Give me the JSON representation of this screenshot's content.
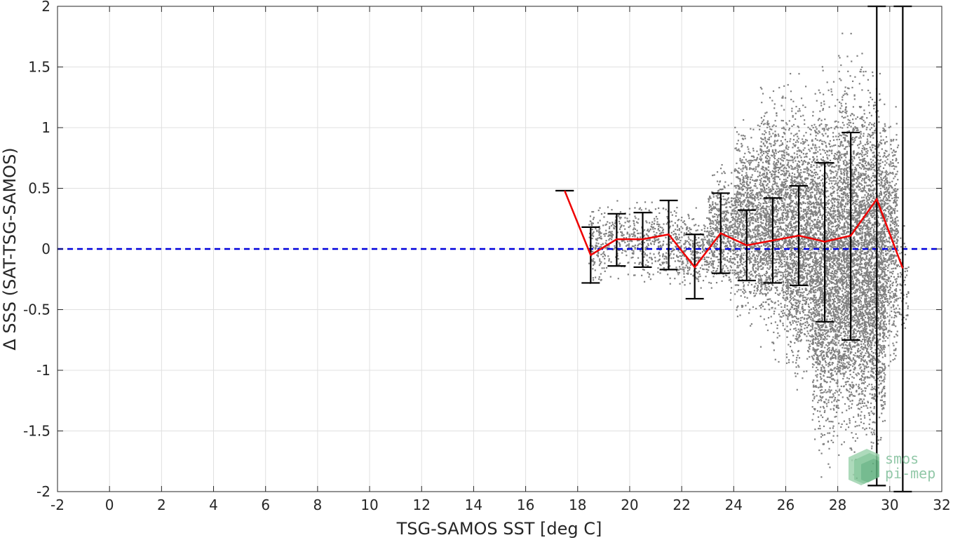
{
  "chart_data": {
    "type": "scatter",
    "xlabel": "TSG-SAMOS SST [deg C]",
    "ylabel": "Δ SSS (SAT-TSG-SAMOS)",
    "xlim": [
      -2,
      32
    ],
    "ylim": [
      -2,
      2
    ],
    "xticks": [
      -2,
      0,
      2,
      4,
      6,
      8,
      10,
      12,
      14,
      16,
      18,
      20,
      22,
      24,
      26,
      28,
      30,
      32
    ],
    "yticks": [
      -2,
      -1.5,
      -1,
      -0.5,
      0,
      0.5,
      1,
      1.5,
      2
    ],
    "xtick_labels": [
      "-2",
      "0",
      "2",
      "4",
      "6",
      "8",
      "10",
      "12",
      "14",
      "16",
      "18",
      "20",
      "22",
      "24",
      "26",
      "28",
      "30",
      "32"
    ],
    "ytick_labels": [
      "-2",
      "-1.5",
      "-1",
      "-0.5",
      "0",
      "0.5",
      "1",
      "1.5",
      "2"
    ],
    "grid": true,
    "reference_line": {
      "y": 0,
      "style": "dashed",
      "color": "#0000dd"
    },
    "series": [
      {
        "kind": "binned-mean-line",
        "color": "#ee0000",
        "x": [
          17.5,
          18.5,
          19.5,
          20.5,
          21.5,
          22.5,
          23.5,
          24.5,
          25.5,
          26.5,
          27.5,
          28.5,
          29.5,
          30.5
        ],
        "y": [
          0.48,
          -0.05,
          0.08,
          0.08,
          0.12,
          -0.15,
          0.13,
          0.03,
          0.07,
          0.11,
          0.06,
          0.11,
          0.41,
          -0.16
        ]
      },
      {
        "kind": "error-bars",
        "color": "#000000",
        "x": [
          17.5,
          18.5,
          19.5,
          20.5,
          21.5,
          22.5,
          23.5,
          24.5,
          25.5,
          26.5,
          27.5,
          28.5,
          29.5,
          30.5
        ],
        "low": [
          0.48,
          -0.28,
          -0.14,
          -0.15,
          -0.17,
          -0.41,
          -0.2,
          -0.26,
          -0.28,
          -0.3,
          -0.6,
          -0.75,
          -1.95,
          -2.0
        ],
        "high": [
          0.48,
          0.18,
          0.29,
          0.3,
          0.4,
          0.12,
          0.46,
          0.32,
          0.42,
          0.52,
          0.71,
          0.96,
          2.0,
          2.0
        ]
      },
      {
        "kind": "scatter-cloud",
        "color": "#808080",
        "bins": [
          {
            "x": [
              18.4,
              19.0
            ],
            "y": [
              -0.38,
              0.45
            ],
            "n": 120
          },
          {
            "x": [
              19.0,
              20.0
            ],
            "y": [
              -0.3,
              0.48
            ],
            "n": 160
          },
          {
            "x": [
              20.0,
              21.0
            ],
            "y": [
              -0.32,
              0.48
            ],
            "n": 180
          },
          {
            "x": [
              21.0,
              22.0
            ],
            "y": [
              -0.4,
              0.45
            ],
            "n": 200
          },
          {
            "x": [
              22.0,
              23.0
            ],
            "y": [
              -0.45,
              0.4
            ],
            "n": 240
          },
          {
            "x": [
              23.0,
              24.0
            ],
            "y": [
              -0.5,
              0.8
            ],
            "n": 500
          },
          {
            "x": [
              24.0,
              25.0
            ],
            "y": [
              -0.75,
              1.2
            ],
            "n": 900
          },
          {
            "x": [
              25.0,
              26.0
            ],
            "y": [
              -1.0,
              1.5
            ],
            "n": 1200
          },
          {
            "x": [
              26.0,
              27.0
            ],
            "y": [
              -1.3,
              1.5
            ],
            "n": 1500
          },
          {
            "x": [
              27.0,
              28.0
            ],
            "y": [
              -2.0,
              1.7
            ],
            "n": 2000
          },
          {
            "x": [
              28.0,
              29.0
            ],
            "y": [
              -2.0,
              1.85
            ],
            "n": 2200
          },
          {
            "x": [
              29.0,
              29.8
            ],
            "y": [
              -1.95,
              1.65
            ],
            "n": 1800
          },
          {
            "x": [
              29.8,
              30.3
            ],
            "y": [
              -1.2,
              1.4
            ],
            "n": 500
          },
          {
            "x": [
              30.3,
              30.7
            ],
            "y": [
              -0.9,
              0.3
            ],
            "n": 60
          }
        ]
      }
    ]
  },
  "watermark": {
    "line1": "smos",
    "line2": "pi-mep"
  }
}
